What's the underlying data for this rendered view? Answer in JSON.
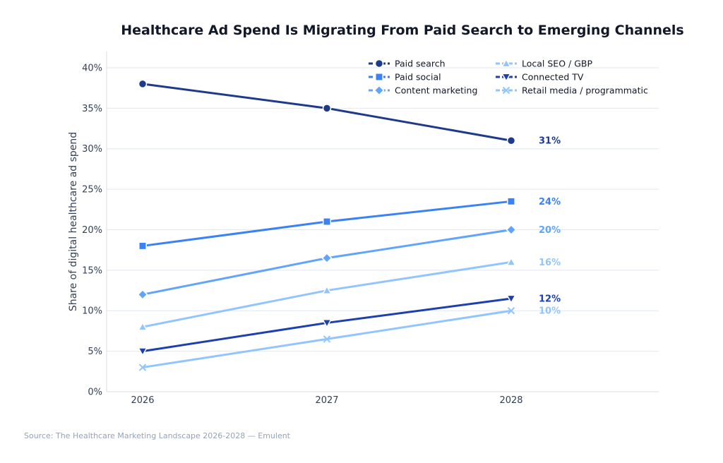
{
  "chart_data": {
    "type": "line",
    "title": "Healthcare Ad Spend Is Migrating From Paid Search to Emerging Channels",
    "xlabel": "",
    "ylabel": "Share of digital healthcare ad spend",
    "categories": [
      "2026",
      "2027",
      "2028"
    ],
    "ylim": [
      0,
      42
    ],
    "yticks": [
      0,
      5,
      10,
      15,
      20,
      25,
      30,
      35,
      40
    ],
    "ytick_labels": [
      "0%",
      "5%",
      "10%",
      "15%",
      "20%",
      "25%",
      "30%",
      "35%",
      "40%"
    ],
    "grid": "horizontal",
    "legend_position": "top-right",
    "series": [
      {
        "name": "Paid search",
        "values": [
          38,
          35,
          31
        ],
        "color": "#1e3a8a",
        "marker": "circle",
        "end_label": "31%"
      },
      {
        "name": "Paid social",
        "values": [
          18,
          21,
          23.5
        ],
        "color": "#3b82f6",
        "marker": "square",
        "end_label": "24%"
      },
      {
        "name": "Content marketing",
        "values": [
          12,
          16.5,
          20
        ],
        "color": "#60a5fa",
        "marker": "diamond",
        "end_label": "20%"
      },
      {
        "name": "Local SEO / GBP",
        "values": [
          8,
          12.5,
          16
        ],
        "color": "#93c5fd",
        "marker": "triangle-up",
        "end_label": "16%"
      },
      {
        "name": "Connected TV",
        "values": [
          5,
          8.5,
          11.5
        ],
        "color": "#1e40af",
        "marker": "triangle-down",
        "end_label": "12%"
      },
      {
        "name": "Retail media / programmatic",
        "values": [
          3,
          6.5,
          10
        ],
        "color": "#93c5fd",
        "marker": "x",
        "end_label": "10%"
      }
    ]
  },
  "source": "Source: The Healthcare Marketing Landscape 2026-2028 — Emulent"
}
